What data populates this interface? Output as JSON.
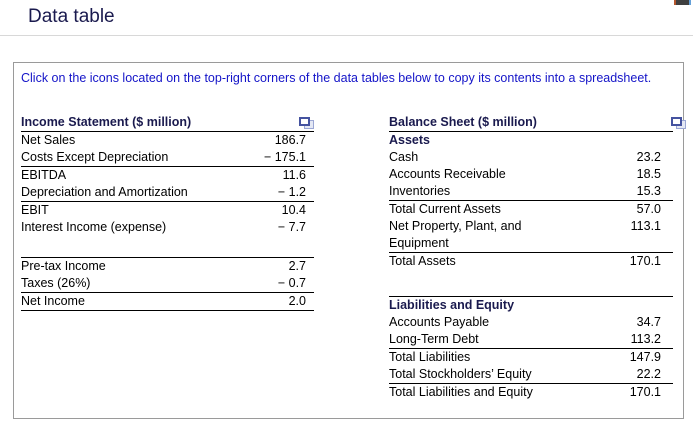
{
  "page": {
    "title": "Data table"
  },
  "instruction": "Click on the icons located on the top-right corners of the data tables below to copy its contents into a spreadsheet.",
  "colors": {
    "instruction": "#1414c8",
    "heading": "#1a1a4e",
    "body_text": "#000000",
    "table_line": "#000000",
    "panel_border": "#9a9a9a",
    "icon_blue": "#4553a0",
    "icon_light": "#9ba7d4",
    "artifact_dark": "#3f3f3f",
    "artifact_orange": "#b4562c",
    "artifact_blue": "#64a0d8"
  },
  "icons": {
    "copy": "copy-table-icon"
  },
  "tables": [
    {
      "title": "Income Statement ($ million)",
      "rows": [
        {
          "label": "Net Sales",
          "value": "186.7"
        },
        {
          "label": "Costs Except Depreciation",
          "value": "− 175.1",
          "bottom": true
        },
        {
          "label": "EBITDA",
          "value": "11.6"
        },
        {
          "label": "Depreciation and Amortization",
          "value": "− 1.2",
          "bottom": true
        },
        {
          "label": "EBIT",
          "value": "10.4"
        },
        {
          "label": "Interest Income (expense)",
          "value": "− 7.7"
        },
        {
          "spacer": "sm"
        },
        {
          "label": "Pre-tax Income",
          "value": "2.7",
          "top": true
        },
        {
          "label": "Taxes (26%)",
          "value": "− 0.7",
          "bottom": true
        },
        {
          "label": "Net Income",
          "value": "2.0",
          "bottom": true
        }
      ]
    },
    {
      "title": "Balance Sheet ($ million)",
      "rows": [
        {
          "label": "Assets",
          "bold": true
        },
        {
          "label": "Cash",
          "value": "23.2"
        },
        {
          "label": "Accounts Receivable",
          "value": "18.5"
        },
        {
          "label": "Inventories",
          "value": "15.3",
          "bottom": true
        },
        {
          "label": "Total Current Assets",
          "value": "57.0"
        },
        {
          "label": "Net Property, Plant, and Equipment",
          "value": "113.1",
          "bottom": true
        },
        {
          "label": "Total Assets",
          "value": "170.1"
        },
        {
          "spacer": "md"
        },
        {
          "label": "Liabilities and Equity",
          "bold": true,
          "top": true
        },
        {
          "label": "Accounts Payable",
          "value": "34.7"
        },
        {
          "label": "Long-Term Debt",
          "value": "113.2",
          "bottom": true
        },
        {
          "label": "Total Liabilities",
          "value": "147.9"
        },
        {
          "label": "Total Stockholders’ Equity",
          "value": "22.2",
          "bottom": true
        },
        {
          "label": "Total Liabilities and Equity",
          "value": "170.1"
        }
      ]
    }
  ]
}
